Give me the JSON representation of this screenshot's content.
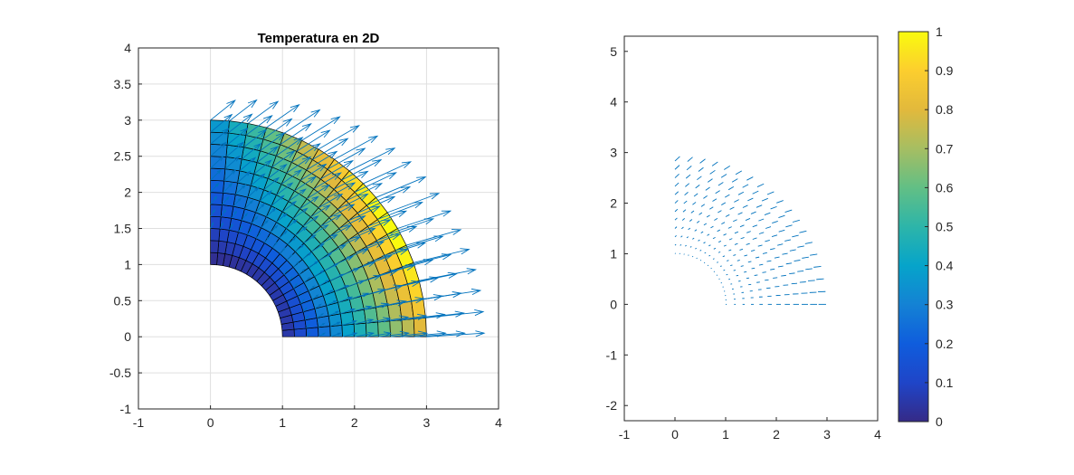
{
  "chart_data": [
    {
      "type": "quiver",
      "title": "Temperatura en 2D",
      "xlim": [
        -1,
        4
      ],
      "ylim": [
        -1,
        4
      ],
      "xticks": [
        "-1",
        "0",
        "1",
        "2",
        "3",
        "4"
      ],
      "yticks": [
        "-1",
        "-0.5",
        "0",
        "0.5",
        "1",
        "1.5",
        "2",
        "2.5",
        "3",
        "3.5",
        "4"
      ],
      "grid": true,
      "mesh": {
        "kind": "annular-sector",
        "r_inner": 1,
        "r_outer": 3,
        "theta_deg": [
          0,
          90
        ],
        "radial_cells": 12,
        "angular_cells": 18,
        "colormap": "parula",
        "field": "temperature"
      },
      "quiver_color": "#0072BD"
    },
    {
      "type": "quiver",
      "xlim": [
        -1,
        4
      ],
      "ylim": [
        -2.3,
        5.3
      ],
      "xticks": [
        "-1",
        "0",
        "1",
        "2",
        "3",
        "4"
      ],
      "yticks": [
        "-2",
        "-1",
        "0",
        "1",
        "2",
        "3",
        "4",
        "5"
      ],
      "grid": false,
      "quiver_color": "#0072BD"
    },
    {
      "type": "colorbar",
      "colormap": "parula",
      "clim": [
        0,
        1
      ],
      "ticks": [
        "0",
        "0.1",
        "0.2",
        "0.3",
        "0.4",
        "0.5",
        "0.6",
        "0.7",
        "0.8",
        "0.9",
        "1"
      ]
    }
  ]
}
